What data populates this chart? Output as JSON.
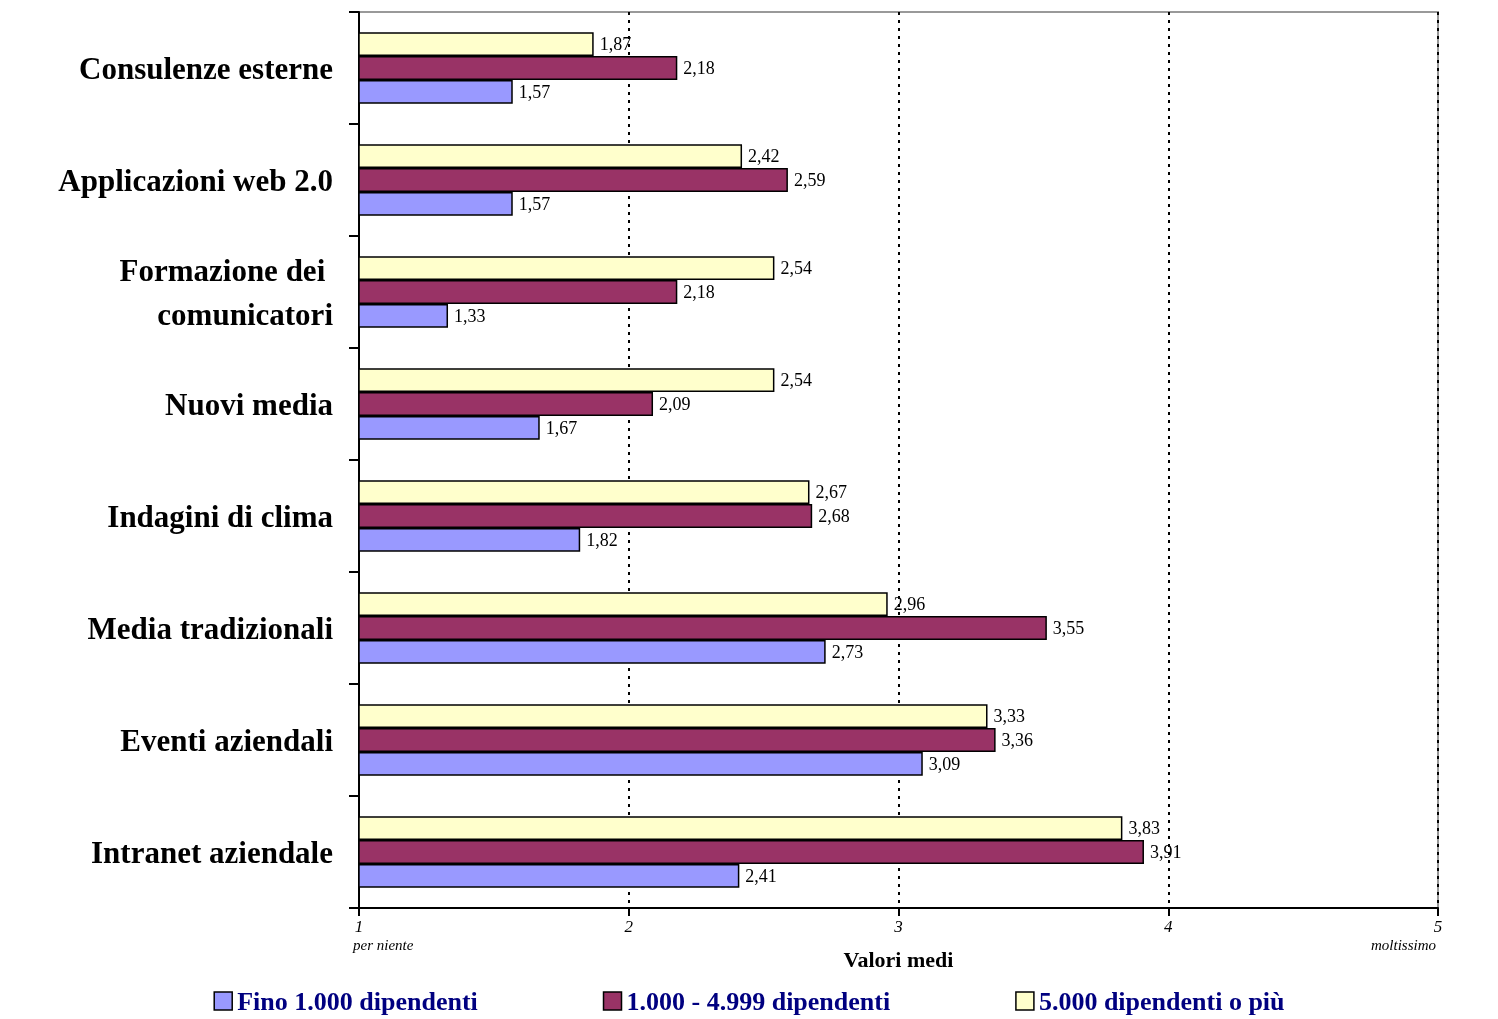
{
  "chart_data": {
    "type": "bar",
    "orientation": "horizontal",
    "categories": [
      "Consulenze esterne",
      "Applicazioni web 2.0",
      "Formazione dei comunicatori",
      "Nuovi media",
      "Indagini di clima",
      "Media tradizionali",
      "Eventi aziendali",
      "Intranet aziendale"
    ],
    "series": [
      {
        "name": "Fino 1.000 dipendenti",
        "color": "#9999ff",
        "values": [
          1.57,
          1.57,
          1.33,
          1.67,
          1.82,
          2.73,
          3.09,
          2.41
        ],
        "value_labels": [
          "1,57",
          "1,57",
          "1,33",
          "1,67",
          "1,82",
          "2,73",
          "3,09",
          "2,41"
        ]
      },
      {
        "name": "1.000 - 4.999 dipendenti",
        "color": "#993366",
        "values": [
          2.18,
          2.59,
          2.18,
          2.09,
          2.68,
          3.55,
          3.36,
          3.91
        ],
        "value_labels": [
          "2,18",
          "2,59",
          "2,18",
          "2,09",
          "2,68",
          "3,55",
          "3,36",
          "3,91"
        ]
      },
      {
        "name": "5.000 dipendenti o più",
        "color": "#ffffcc",
        "values": [
          1.87,
          2.42,
          2.54,
          2.54,
          2.67,
          2.96,
          3.33,
          3.83
        ],
        "value_labels": [
          "1,87",
          "2,42",
          "2,54",
          "2,54",
          "2,67",
          "2,96",
          "3,33",
          "3,83"
        ]
      }
    ],
    "xlabel": "Valori medi",
    "xlim": [
      1,
      5
    ],
    "xticks": [
      1,
      2,
      3,
      4,
      5
    ],
    "annotations": [
      "per niente",
      "moltissimo"
    ],
    "grid": "x",
    "legend": "bottom"
  }
}
